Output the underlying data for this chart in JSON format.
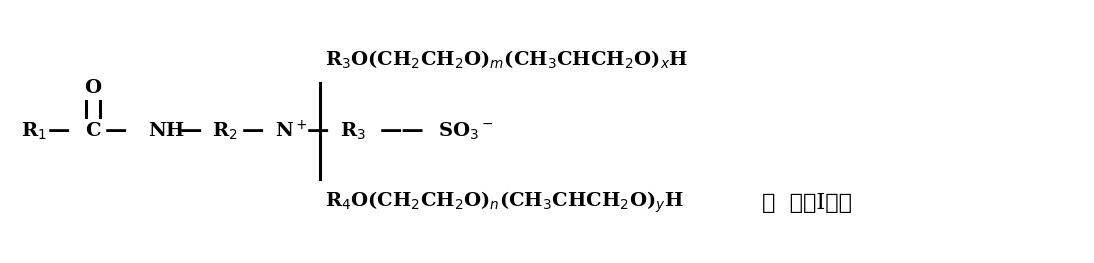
{
  "figsize": [
    10.94,
    2.63
  ],
  "dpi": 100,
  "bg_color": "#ffffff",
  "formula_top": "R$_3$O(CH$_2$CH$_2$O)$_m$(CH$_3$CHCH$_2$O)$_x$H",
  "formula_bottom": "R$_4$O(CH$_2$CH$_2$O)$_n$(CH$_3$CHCH$_2$O)$_y$H",
  "label_shi": "，  式（I）；",
  "fontsize_main": 14,
  "fontsize_label": 16
}
